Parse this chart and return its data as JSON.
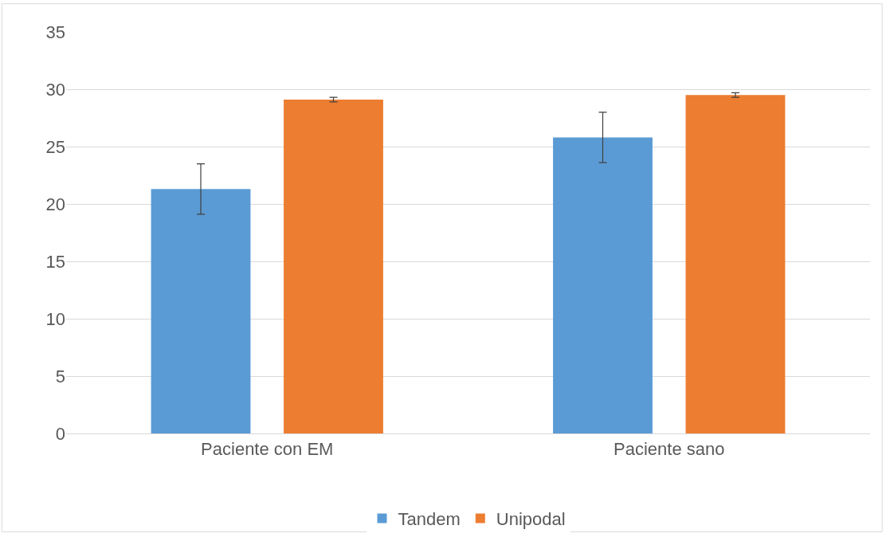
{
  "chart_data": {
    "type": "bar",
    "categories": [
      "Paciente con EM",
      "Paciente sano"
    ],
    "series": [
      {
        "name": "Tandem",
        "color": "#5b9bd5",
        "values": [
          21.3,
          25.8
        ],
        "errors": [
          2.2,
          2.2
        ]
      },
      {
        "name": "Unipodal",
        "color": "#ed7d31",
        "values": [
          29.1,
          29.5
        ],
        "errors": [
          0.2,
          0.2
        ]
      }
    ],
    "ylim": [
      0,
      35
    ],
    "yticks": [
      0,
      5,
      10,
      15,
      20,
      25,
      30,
      35
    ],
    "grid": "y",
    "legend": "bottom"
  }
}
